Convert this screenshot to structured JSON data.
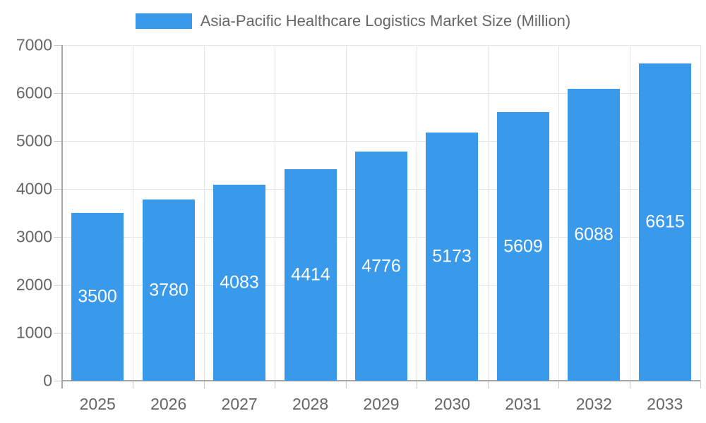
{
  "legend": {
    "label": "Asia-Pacific Healthcare Logistics Market Size (Million)"
  },
  "chart_data": {
    "type": "bar",
    "title": "Asia-Pacific Healthcare Logistics Market Size (Million)",
    "categories": [
      "2025",
      "2026",
      "2027",
      "2028",
      "2029",
      "2030",
      "2031",
      "2032",
      "2033"
    ],
    "values": [
      3500,
      3780,
      4083,
      4414,
      4776,
      5173,
      5609,
      6088,
      6615
    ],
    "series": [
      {
        "name": "Asia-Pacific Healthcare Logistics Market Size (Million)",
        "values": [
          3500,
          3780,
          4083,
          4414,
          4776,
          5173,
          5609,
          6088,
          6615
        ]
      }
    ],
    "xlabel": "",
    "ylabel": "",
    "ylim": [
      0,
      7000
    ],
    "yticks": [
      0,
      1000,
      2000,
      3000,
      4000,
      5000,
      6000,
      7000
    ],
    "grid": true,
    "legend_position": "top",
    "value_labels": "inside-center-white",
    "colors": {
      "bar": "#3999EB",
      "grid": "#E3E3E3",
      "axis": "#A6A6A6",
      "tick": "#C9C9C9",
      "text": "#666666",
      "bar_label": "#FFFFFF",
      "background": "#FFFFFF"
    }
  }
}
